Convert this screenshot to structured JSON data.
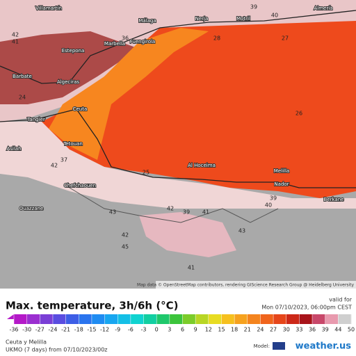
{
  "header": {
    "title": "Max. temperature, 3h/6h (°C)",
    "valid_label": "valid for",
    "valid_time": "Mon 07/10/2023, 06:00pm CEST"
  },
  "map": {
    "attribution": "Map data © OpenStreetMap contributors, rendering GIScience Research Group @ Heidelberg University",
    "cities": [
      "Villamartín",
      "Málaga",
      "Nerja",
      "Motril",
      "Almería",
      "Marbella",
      "Estepona",
      "Fuengirola",
      "Algeciras",
      "Barbate",
      "Ceuta",
      "Tangier",
      "Tetouan",
      "Asilah",
      "Chefchaouen",
      "Al Hoceima",
      "Melilla",
      "Nador",
      "Berkane",
      "Ouazzane"
    ],
    "temperatures": [
      39,
      40,
      42,
      41,
      36,
      28,
      27,
      24,
      26,
      25,
      42,
      37,
      43,
      42,
      39,
      41,
      43,
      42,
      39,
      40,
      45,
      41
    ]
  },
  "legend": {
    "ticks": [
      -36,
      -30,
      -27,
      -24,
      -21,
      -18,
      -15,
      -12,
      -9,
      -6,
      -3,
      0,
      3,
      6,
      9,
      12,
      15,
      18,
      21,
      24,
      27,
      30,
      33,
      36,
      39,
      44,
      50
    ],
    "colors": [
      "#b419c8",
      "#9b2fd0",
      "#7a3fd6",
      "#5a4de0",
      "#3d5ee6",
      "#2a74ee",
      "#1f8cf2",
      "#18a6f0",
      "#14bfe6",
      "#10d3d0",
      "#12cfa2",
      "#1fc86c",
      "#3cc43c",
      "#7ccc2a",
      "#b8d624",
      "#e8dc22",
      "#f6c01e",
      "#f6a21e",
      "#f4841e",
      "#f0641c",
      "#e6461a",
      "#cc2818",
      "#a8141a",
      "#c8486a",
      "#e89aae",
      "#cfcfcf"
    ]
  },
  "footer": {
    "region": "Ceuta y Melilla",
    "model_run": "UKMO (7 days) from 07/10/2023/00z",
    "model_label": "Model:",
    "brand": "weather.us"
  }
}
